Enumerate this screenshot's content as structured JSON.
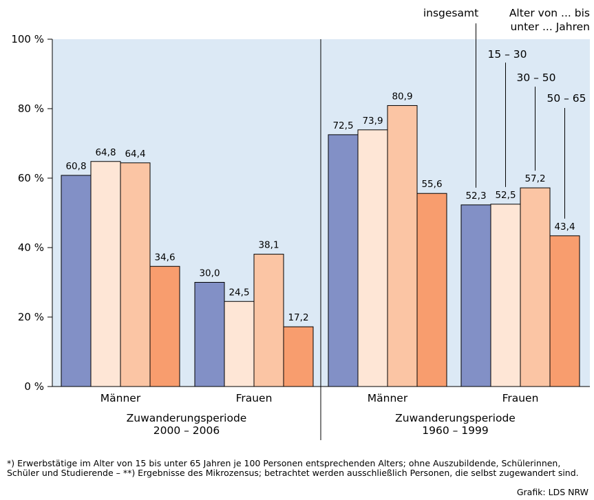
{
  "chart_data": {
    "type": "bar",
    "ylim": [
      0,
      100
    ],
    "yticks": [
      0,
      20,
      40,
      60,
      80,
      100
    ],
    "ytick_labels": [
      "0 %",
      "20 %",
      "40 %",
      "60 %",
      "80 %",
      "100 %"
    ],
    "series": [
      {
        "name": "insgesamt",
        "color": "#8290c6"
      },
      {
        "name": "15 – 30",
        "color": "#fee6d6"
      },
      {
        "name": "30 – 50",
        "color": "#fbc5a4"
      },
      {
        "name": "50 – 65",
        "color": "#f89d6e"
      }
    ],
    "legend_header": [
      "Alter von ... bis",
      "unter ... Jahren"
    ],
    "panels": [
      {
        "period_label": [
          "Zuwanderungsperiode",
          "2000 – 2006"
        ],
        "background": "#dce9f5",
        "groups": [
          {
            "name": "Männer",
            "values": [
              60.8,
              64.8,
              64.4,
              34.6
            ],
            "labels": [
              "60,8",
              "64,8",
              "64,4",
              "34,6"
            ]
          },
          {
            "name": "Frauen",
            "values": [
              30.0,
              24.5,
              38.1,
              17.2
            ],
            "labels": [
              "30,0",
              "24,5",
              "38,1",
              "17,2"
            ]
          }
        ]
      },
      {
        "period_label": [
          "Zuwanderungsperiode",
          "1960 – 1999"
        ],
        "background": "#dce9f5",
        "groups": [
          {
            "name": "Männer",
            "values": [
              72.5,
              73.9,
              80.9,
              55.6
            ],
            "labels": [
              "72,5",
              "73,9",
              "80,9",
              "55,6"
            ]
          },
          {
            "name": "Frauen",
            "values": [
              52.3,
              52.5,
              57.2,
              43.4
            ],
            "labels": [
              "52,3",
              "52,5",
              "57,2",
              "43,4"
            ]
          }
        ]
      }
    ]
  },
  "footnote": "*) Erwerbstätige im Alter von 15 bis unter 65 Jahren je 100 Personen entsprechenden Alters; ohne Auszubildende, Schülerinnen, Schüler und Studierende – **) Ergebnisse des Mikrozensus; betrachtet werden ausschließlich Personen, die selbst zugewandert sind.",
  "credit": "Grafik: LDS NRW"
}
